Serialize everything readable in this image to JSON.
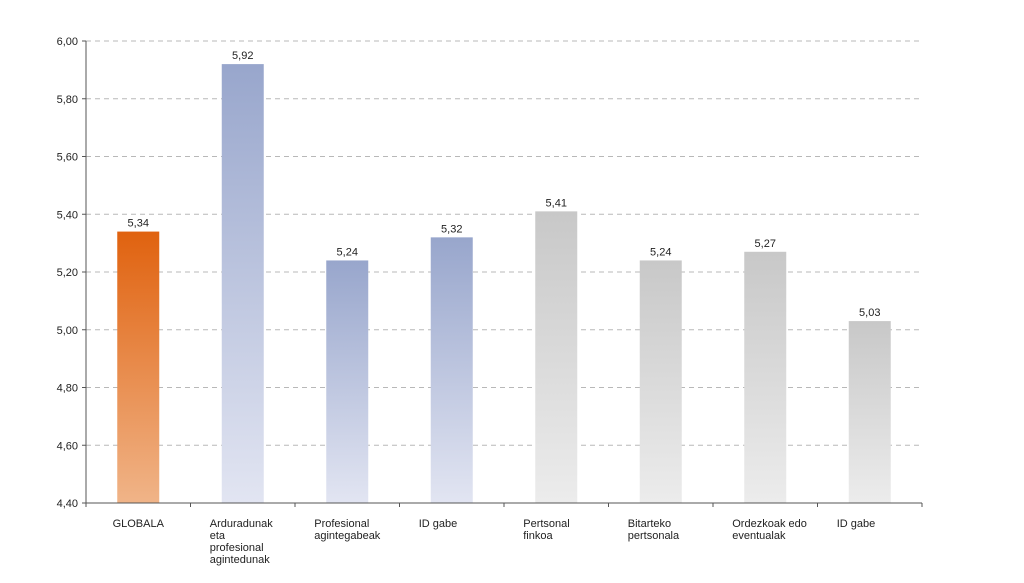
{
  "chart_data": {
    "type": "bar",
    "title": "",
    "xlabel": "",
    "ylabel": "",
    "ylim": [
      4.4,
      6.0
    ],
    "ytick_step": 0.2,
    "grid": true,
    "y_tick_labels": [
      "4,40",
      "4,60",
      "4,80",
      "5,00",
      "5,20",
      "5,40",
      "5,60",
      "5,80",
      "6,00"
    ],
    "categories": [
      [
        "GLOBALA"
      ],
      [
        "Arduradunak",
        "eta",
        "profesional",
        "agintedunak"
      ],
      [
        "Profesional",
        "agintegabeak"
      ],
      [
        "ID gabe"
      ],
      [
        "Pertsonal",
        "finkoa"
      ],
      [
        "Bitarteko",
        "pertsonala"
      ],
      [
        "Ordezkoak edo",
        "eventualak"
      ],
      [
        "ID gabe"
      ]
    ],
    "values": [
      5.34,
      5.92,
      5.24,
      5.32,
      5.41,
      5.24,
      5.27,
      5.03
    ],
    "value_labels": [
      "5,34",
      "5,92",
      "5,24",
      "5,32",
      "5,41",
      "5,24",
      "5,27",
      "5,03"
    ],
    "bar_color_groups": [
      "orange",
      "blue",
      "blue",
      "blue",
      "gray",
      "gray",
      "gray",
      "gray"
    ],
    "colors": {
      "orange_top": "#e0620f",
      "orange_bottom": "#f0b488",
      "blue_top": "#98a6cc",
      "blue_bottom": "#e2e5f2",
      "gray_top": "#c8c8c8",
      "gray_bottom": "#ececec"
    }
  }
}
